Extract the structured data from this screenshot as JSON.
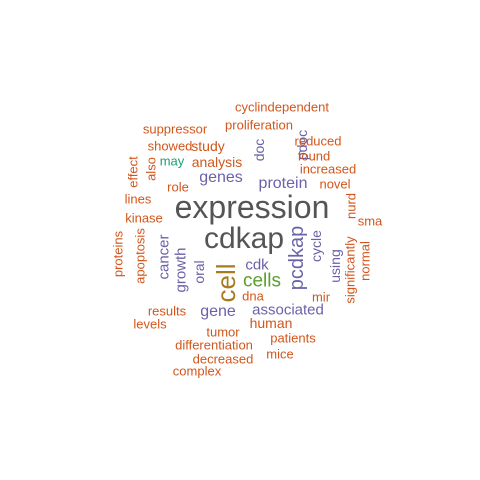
{
  "colors": {
    "grey": "#555555",
    "purple": "#6a62a8",
    "green": "#5aa02c",
    "orange": "#d2561b",
    "olive": "#a67c1e",
    "teal": "#1b9e77"
  },
  "words": [
    {
      "text": "expression",
      "color": "grey",
      "orientation": "horizontal"
    },
    {
      "text": "cdkap",
      "color": "grey",
      "orientation": "horizontal"
    },
    {
      "text": "cell",
      "color": "olive",
      "orientation": "vertical"
    },
    {
      "text": "cells",
      "color": "green",
      "orientation": "horizontal"
    },
    {
      "text": "pcdkap",
      "color": "purple",
      "orientation": "vertical"
    },
    {
      "text": "protein",
      "color": "purple",
      "orientation": "horizontal"
    },
    {
      "text": "genes",
      "color": "purple",
      "orientation": "horizontal"
    },
    {
      "text": "gene",
      "color": "purple",
      "orientation": "horizontal"
    },
    {
      "text": "associated",
      "color": "purple",
      "orientation": "horizontal"
    },
    {
      "text": "cancer",
      "color": "purple",
      "orientation": "vertical"
    },
    {
      "text": "cdk",
      "color": "purple",
      "orientation": "horizontal"
    },
    {
      "text": "growth",
      "color": "purple",
      "orientation": "vertical"
    },
    {
      "text": "cycle",
      "color": "purple",
      "orientation": "vertical"
    },
    {
      "text": "using",
      "color": "purple",
      "orientation": "vertical"
    },
    {
      "text": "doc",
      "color": "purple",
      "orientation": "vertical"
    },
    {
      "text": "pdoc",
      "color": "purple",
      "orientation": "vertical"
    },
    {
      "text": "oral",
      "color": "purple",
      "orientation": "vertical"
    },
    {
      "text": "analysis",
      "color": "orange",
      "orientation": "horizontal"
    },
    {
      "text": "human",
      "color": "orange",
      "orientation": "horizontal"
    },
    {
      "text": "study",
      "color": "orange",
      "orientation": "horizontal"
    },
    {
      "text": "cyclindependent",
      "color": "orange",
      "orientation": "horizontal"
    },
    {
      "text": "proliferation",
      "color": "orange",
      "orientation": "horizontal"
    },
    {
      "text": "suppressor",
      "color": "orange",
      "orientation": "horizontal"
    },
    {
      "text": "reduced",
      "color": "orange",
      "orientation": "horizontal"
    },
    {
      "text": "showed",
      "color": "orange",
      "orientation": "horizontal"
    },
    {
      "text": "may",
      "color": "teal",
      "orientation": "horizontal"
    },
    {
      "text": "found",
      "color": "orange",
      "orientation": "horizontal"
    },
    {
      "text": "increased",
      "color": "orange",
      "orientation": "horizontal"
    },
    {
      "text": "novel",
      "color": "orange",
      "orientation": "horizontal"
    },
    {
      "text": "role",
      "color": "orange",
      "orientation": "horizontal"
    },
    {
      "text": "also",
      "color": "orange",
      "orientation": "vertical"
    },
    {
      "text": "effect",
      "color": "orange",
      "orientation": "vertical"
    },
    {
      "text": "lines",
      "color": "orange",
      "orientation": "horizontal"
    },
    {
      "text": "kinase",
      "color": "orange",
      "orientation": "horizontal"
    },
    {
      "text": "nurd",
      "color": "orange",
      "orientation": "vertical"
    },
    {
      "text": "sma",
      "color": "orange",
      "orientation": "horizontal"
    },
    {
      "text": "significantly",
      "color": "orange",
      "orientation": "vertical"
    },
    {
      "text": "normal",
      "color": "orange",
      "orientation": "vertical"
    },
    {
      "text": "proteins",
      "color": "orange",
      "orientation": "vertical"
    },
    {
      "text": "apoptosis",
      "color": "orange",
      "orientation": "vertical"
    },
    {
      "text": "dna",
      "color": "orange",
      "orientation": "horizontal"
    },
    {
      "text": "mir",
      "color": "orange",
      "orientation": "horizontal"
    },
    {
      "text": "results",
      "color": "orange",
      "orientation": "horizontal"
    },
    {
      "text": "levels",
      "color": "orange",
      "orientation": "horizontal"
    },
    {
      "text": "tumor",
      "color": "orange",
      "orientation": "horizontal"
    },
    {
      "text": "patients",
      "color": "orange",
      "orientation": "horizontal"
    },
    {
      "text": "differentiation",
      "color": "orange",
      "orientation": "horizontal"
    },
    {
      "text": "mice",
      "color": "orange",
      "orientation": "horizontal"
    },
    {
      "text": "decreased",
      "color": "orange",
      "orientation": "horizontal"
    },
    {
      "text": "complex",
      "color": "orange",
      "orientation": "horizontal"
    }
  ]
}
